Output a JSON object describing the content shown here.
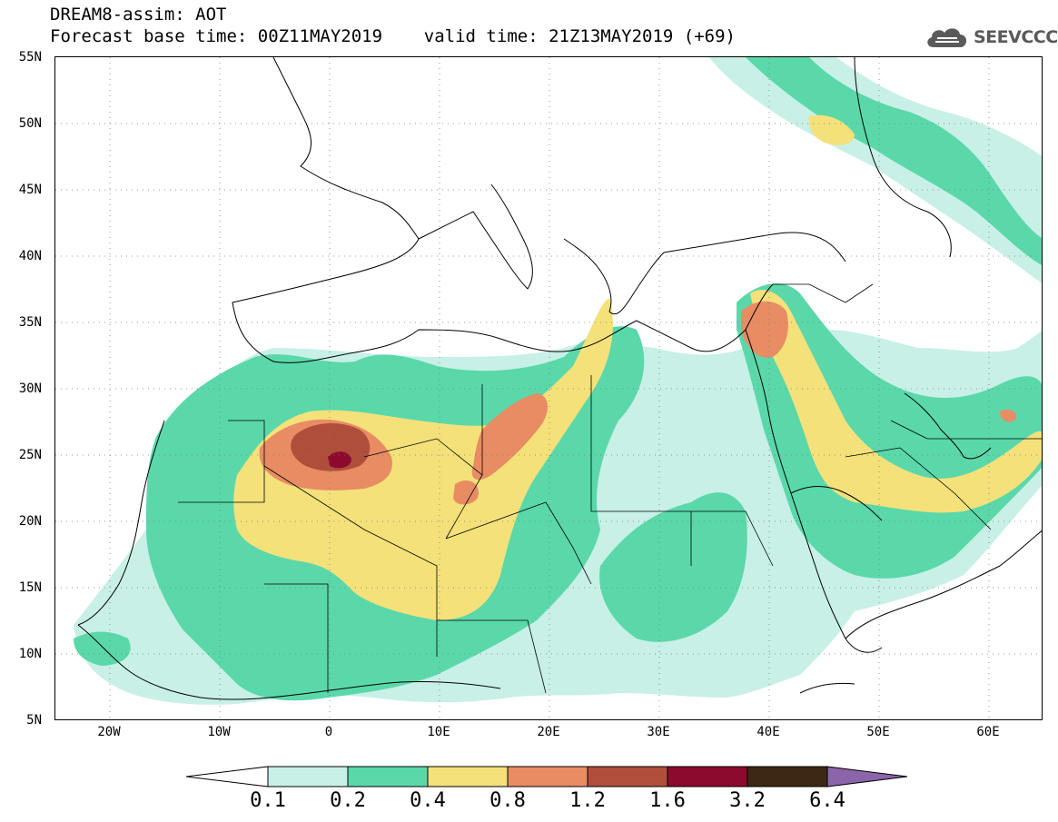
{
  "header": {
    "title_line1": "DREAM8-assim: AOT",
    "title_line2": "Forecast base time: 00Z11MAY2019    valid time: 21Z13MAY2019 (+69)",
    "logo_text": "SEEVCCC",
    "logo_icon": "cloud-icon"
  },
  "map": {
    "projection": "cylindrical equidistant",
    "lon_range": [
      -25,
      65
    ],
    "lat_range": [
      5,
      55
    ],
    "lat_labels": [
      "5N",
      "10N",
      "15N",
      "20N",
      "25N",
      "30N",
      "35N",
      "40N",
      "45N",
      "50N",
      "55N"
    ],
    "lon_labels": [
      "20W",
      "10W",
      "0",
      "10E",
      "20E",
      "30E",
      "40E",
      "50E",
      "60E"
    ],
    "gridlines": "dotted",
    "variable": "Aerosol optical thickness (AOT)"
  },
  "colorbar": {
    "labels": [
      "0.1",
      "0.2",
      "0.4",
      "0.8",
      "1.2",
      "1.6",
      "3.2",
      "6.4"
    ],
    "colors": [
      "#c8f0e6",
      "#5ad8aa",
      "#f5e17a",
      "#e88c64",
      "#b04e3c",
      "#8c0a2d",
      "#3c2814"
    ],
    "under_color": "#ffffff",
    "over_color": "#8c64aa"
  }
}
